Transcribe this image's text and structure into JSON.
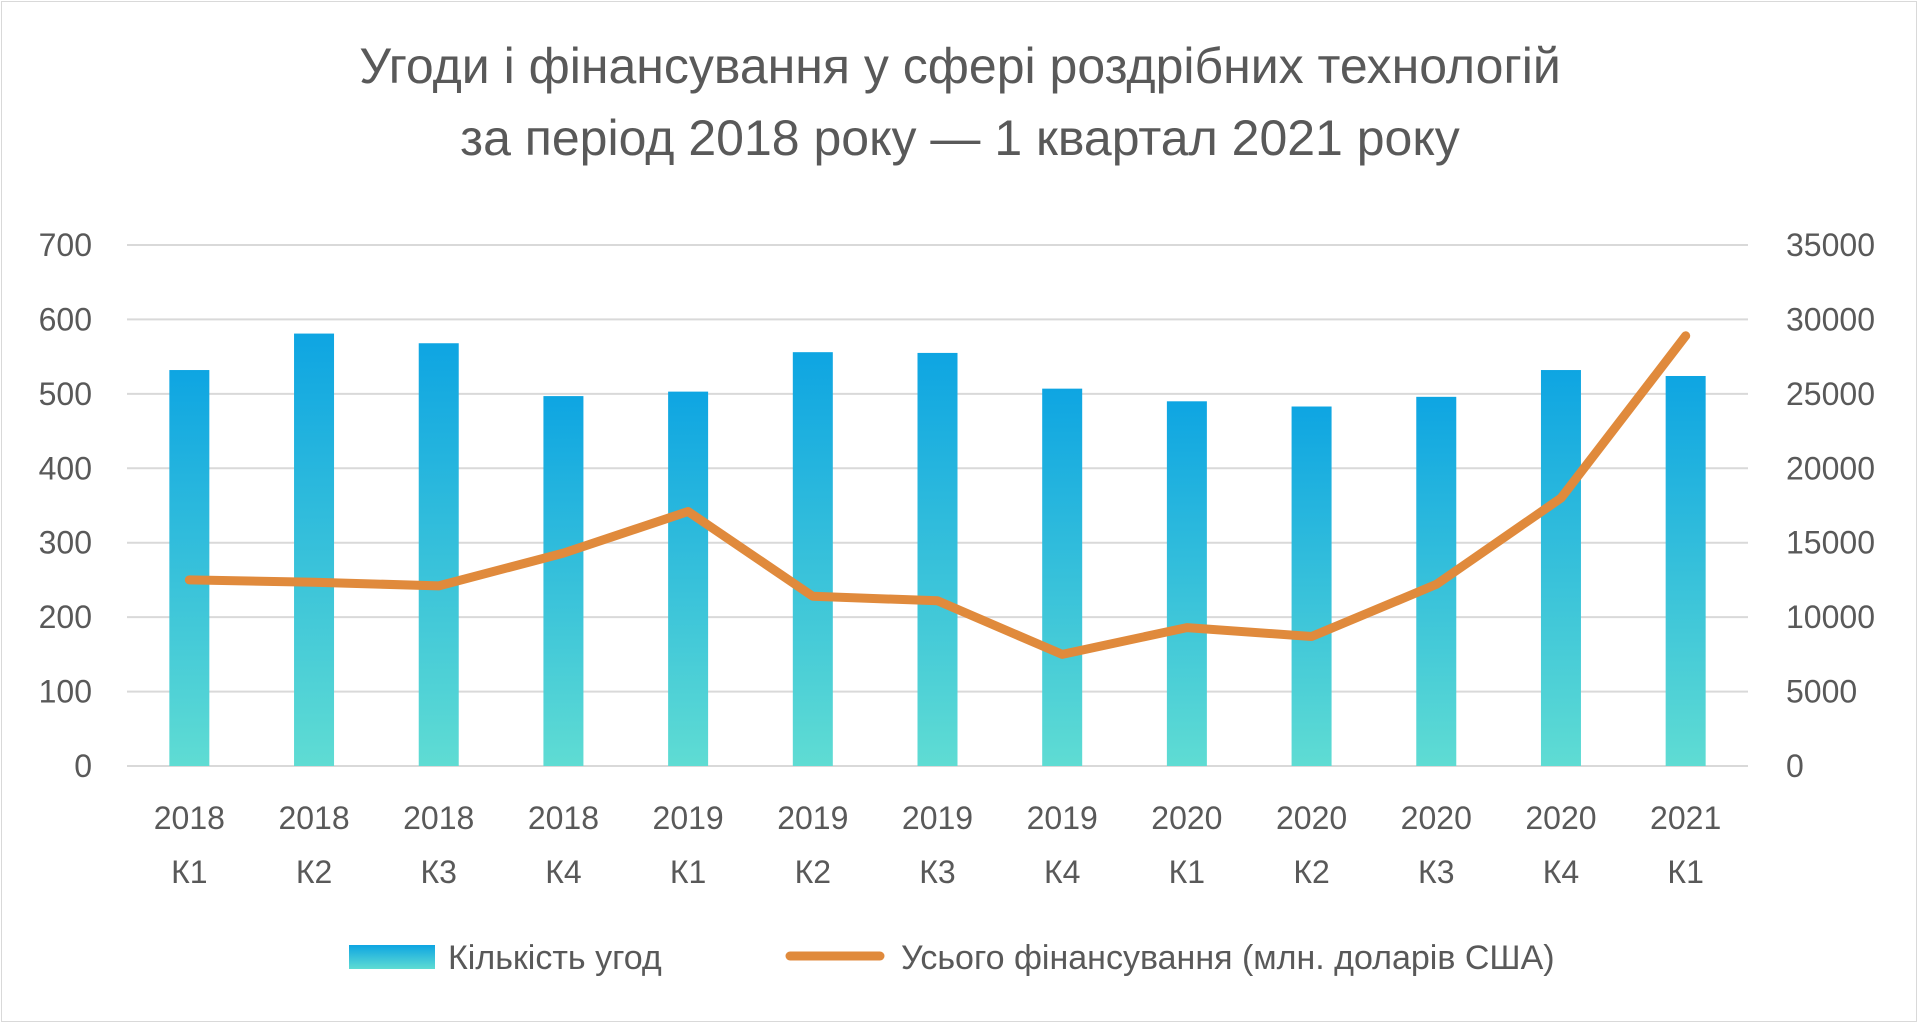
{
  "chart_data": {
    "type": "bar",
    "title_line1": "Угоди і фінансування у сфері роздрібних технологій",
    "title_line2": "за період 2018 року — 1 квартал 2021 року",
    "categories": [
      [
        "2018",
        "К1"
      ],
      [
        "2018",
        "К2"
      ],
      [
        "2018",
        "К3"
      ],
      [
        "2018",
        "К4"
      ],
      [
        "2019",
        "К1"
      ],
      [
        "2019",
        "К2"
      ],
      [
        "2019",
        "К3"
      ],
      [
        "2019",
        "К4"
      ],
      [
        "2020",
        "К1"
      ],
      [
        "2020",
        "К2"
      ],
      [
        "2020",
        "К3"
      ],
      [
        "2020",
        "К4"
      ],
      [
        "2021",
        "К1"
      ]
    ],
    "series": [
      {
        "name": "Кількість угод",
        "type": "bar",
        "axis": "left",
        "values": [
          532,
          581,
          568,
          497,
          503,
          556,
          555,
          507,
          490,
          483,
          496,
          532,
          524
        ]
      },
      {
        "name": "Усього фінансування (млн. доларів США)",
        "type": "line",
        "axis": "right",
        "values": [
          12500,
          12350,
          12100,
          14300,
          17100,
          11400,
          11100,
          7500,
          9300,
          8700,
          12200,
          18000,
          28900
        ]
      }
    ],
    "y_left": {
      "min": 0,
      "max": 700,
      "ticks": [
        0,
        100,
        200,
        300,
        400,
        500,
        600,
        700
      ]
    },
    "y_right": {
      "min": 0,
      "max": 35000,
      "ticks": [
        0,
        5000,
        10000,
        15000,
        20000,
        25000,
        30000,
        35000
      ]
    },
    "grid": true,
    "legend_position": "bottom",
    "colors": {
      "bar_top": "#0ea5e2",
      "bar_bottom": "#5fdcd3",
      "line": "#e08a3c",
      "grid": "#d9d9d9",
      "text": "#595959"
    }
  }
}
